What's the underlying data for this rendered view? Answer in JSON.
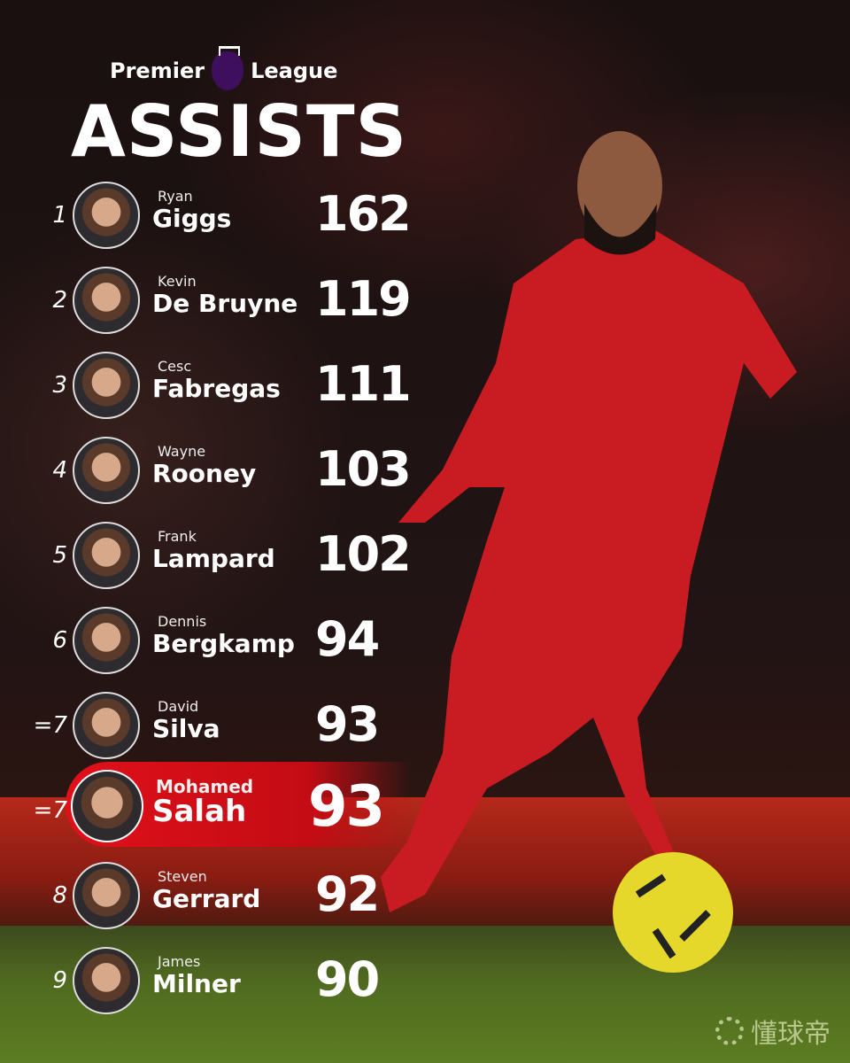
{
  "header": {
    "brand_left": "Premier",
    "brand_right": "League",
    "logo": "premier-league-lion-logo",
    "title": "ASSISTS"
  },
  "colors": {
    "highlight": "#d80f18",
    "background": "#1a1010",
    "pl_purple": "#3d0f5c"
  },
  "rows": [
    {
      "rank": "1",
      "first": "Ryan",
      "last": "Giggs",
      "assists": "162"
    },
    {
      "rank": "2",
      "first": "Kevin",
      "last": "De Bruyne",
      "assists": "119"
    },
    {
      "rank": "3",
      "first": "Cesc",
      "last": "Fabregas",
      "assists": "111"
    },
    {
      "rank": "4",
      "first": "Wayne",
      "last": "Rooney",
      "assists": "103"
    },
    {
      "rank": "5",
      "first": "Frank",
      "last": "Lampard",
      "assists": "102"
    },
    {
      "rank": "6",
      "first": "Dennis",
      "last": "Bergkamp",
      "assists": "94"
    },
    {
      "rank": "=7",
      "first": "David",
      "last": "Silva",
      "assists": "93"
    },
    {
      "rank": "=7",
      "first": "Mohamed",
      "last": "Salah",
      "assists": "93",
      "highlight": true
    },
    {
      "rank": "8",
      "first": "Steven",
      "last": "Gerrard",
      "assists": "92"
    },
    {
      "rank": "9",
      "first": "James",
      "last": "Milner",
      "assists": "90"
    }
  ],
  "watermark": "懂球帝"
}
